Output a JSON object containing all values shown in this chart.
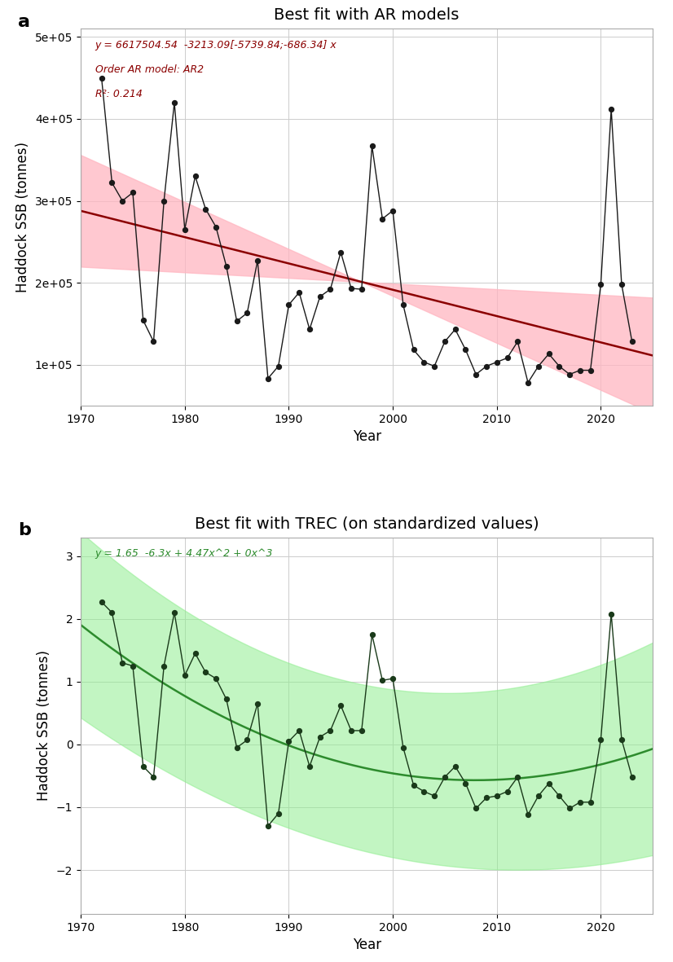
{
  "title_a": "Best fit with AR models",
  "title_b": "Best fit with TREC (on standardized values)",
  "xlabel": "Year",
  "ylabel": "Haddock SSB (tonnes)",
  "label_a": "a",
  "label_b": "b",
  "annotation_a_line1": "y = 6617504.54  -3213.09[-5739.84;-686.34] x",
  "annotation_a_line2": "Order AR model: AR2",
  "annotation_a_line3": "R²: 0.214",
  "annotation_b": "y = 1.65  -6.3x + 4.47x^2 + 0x^3",
  "years": [
    1972,
    1973,
    1974,
    1975,
    1976,
    1977,
    1978,
    1979,
    1980,
    1981,
    1982,
    1983,
    1984,
    1985,
    1986,
    1987,
    1988,
    1989,
    1990,
    1991,
    1992,
    1993,
    1994,
    1995,
    1996,
    1997,
    1998,
    1999,
    2000,
    2001,
    2002,
    2003,
    2004,
    2005,
    2006,
    2007,
    2008,
    2009,
    2010,
    2011,
    2012,
    2013,
    2014,
    2015,
    2016,
    2017,
    2018,
    2019,
    2020,
    2021,
    2022,
    2023
  ],
  "ssb_values": [
    450000,
    322000,
    300000,
    310000,
    154000,
    128000,
    300000,
    420000,
    265000,
    330000,
    290000,
    268000,
    220000,
    153000,
    163000,
    227000,
    83000,
    98000,
    173000,
    188000,
    143000,
    183000,
    192000,
    237000,
    193000,
    192000,
    367000,
    278000,
    288000,
    173000,
    118000,
    103000,
    98000,
    128000,
    143000,
    118000,
    88000,
    98000,
    103000,
    108000,
    128000,
    78000,
    98000,
    113000,
    98000,
    88000,
    93000,
    93000,
    198000,
    412000,
    198000,
    128000
  ],
  "intercept_a": 6617504.54,
  "slope_a": -3213.09,
  "slope_ci_lower": -5739.84,
  "slope_ci_upper": -686.34,
  "trend_color_a": "#8B0000",
  "ci_color_a": "#ffb6c1",
  "data_color_a": "#1a1a1a",
  "trend_color_b": "#2d8b2d",
  "ci_color_b": "#90ee90",
  "data_color_b": "#1a3a1a",
  "xlim": [
    1970,
    2025
  ],
  "ylim_a": [
    50000,
    510000
  ],
  "ylim_b": [
    -2.7,
    3.3
  ],
  "yticks_a": [
    100000,
    200000,
    300000,
    400000,
    500000
  ],
  "ytick_labels_a": [
    "1e+05",
    "2e+05",
    "3e+05",
    "4e+05",
    "5e+05"
  ],
  "yticks_b": [
    -2,
    -1,
    0,
    1,
    2,
    3
  ],
  "xticks": [
    1970,
    1980,
    1990,
    2000,
    2010,
    2020
  ],
  "background_color": "#ffffff",
  "grid_color": "#cccccc",
  "std_values": [
    2.27,
    2.1,
    1.3,
    1.25,
    -0.35,
    -0.52,
    1.25,
    2.1,
    1.1,
    1.45,
    1.15,
    1.05,
    0.72,
    -0.05,
    0.07,
    0.65,
    -1.3,
    -1.1,
    0.05,
    0.22,
    -0.35,
    0.12,
    0.22,
    0.62,
    0.22,
    0.22,
    1.75,
    1.02,
    1.05,
    -0.05,
    -0.65,
    -0.75,
    -0.82,
    -0.52,
    -0.35,
    -0.62,
    -1.02,
    -0.85,
    -0.82,
    -0.75,
    -0.52,
    -1.12,
    -0.82,
    -0.62,
    -0.82,
    -1.02,
    -0.92,
    -0.92,
    0.08,
    2.08,
    0.08,
    -0.52
  ]
}
